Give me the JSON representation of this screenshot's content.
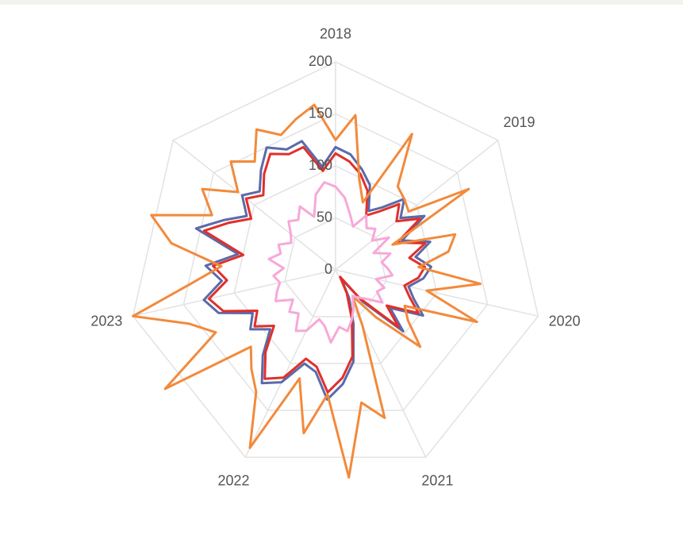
{
  "chart_data": {
    "type": "radar",
    "categories": [
      "2018",
      null,
      null,
      null,
      null,
      null,
      null,
      "2019",
      null,
      null,
      null,
      null,
      null,
      null,
      "2020",
      null,
      null,
      null,
      null,
      null,
      null,
      "2021",
      null,
      null,
      null,
      null,
      null,
      null,
      "2022",
      null,
      null,
      null,
      null,
      null,
      null,
      "2023",
      null,
      null,
      null,
      null,
      null,
      null,
      null,
      null,
      null,
      null,
      null,
      null,
      null
    ],
    "ylim": [
      0,
      200
    ],
    "yticks": [
      0,
      50,
      100,
      150,
      200
    ],
    "grid": true,
    "series": [
      {
        "color": "#5b6aa8",
        "values": [
          118,
          112,
          100,
          88,
          65,
          75,
          95,
          80,
          100,
          70,
          95,
          78,
          92,
          85,
          72,
          80,
          95,
          64,
          88,
          40,
          10,
          30,
          55,
          90,
          110,
          125,
          100,
          95,
          120,
          130,
          108,
          85,
          100,
          90,
          120,
          130,
          110,
          125,
          95,
          140,
          118,
          100,
          115,
          105,
          120,
          135,
          125,
          128,
          100
        ]
      },
      {
        "color": "#e0302b",
        "values": [
          112,
          105,
          95,
          82,
          60,
          70,
          88,
          75,
          95,
          65,
          90,
          72,
          86,
          80,
          68,
          76,
          90,
          60,
          82,
          36,
          8,
          25,
          50,
          85,
          104,
          118,
          95,
          90,
          115,
          125,
          104,
          80,
          95,
          85,
          115,
          125,
          105,
          118,
          90,
          132,
          112,
          95,
          110,
          100,
          115,
          128,
          120,
          122,
          96
        ]
      },
      {
        "color": "#f28a3c",
        "values": [
          125,
          150,
          90,
          70,
          150,
          100,
          95,
          90,
          150,
          60,
          120,
          110,
          80,
          140,
          90,
          145,
          75,
          85,
          110,
          60,
          30,
          60,
          150,
          130,
          200,
          120,
          160,
          110,
          190,
          140,
          125,
          110,
          200,
          130,
          150,
          200,
          140,
          110,
          160,
          185,
          130,
          150,
          120,
          145,
          130,
          155,
          140,
          150,
          160
        ]
      },
      {
        "color": "#f7a8d8",
        "values": [
          80,
          70,
          55,
          45,
          60,
          50,
          55,
          45,
          60,
          40,
          55,
          45,
          50,
          55,
          40,
          50,
          45,
          55,
          42,
          35,
          30,
          40,
          50,
          60,
          55,
          70,
          55,
          50,
          65,
          70,
          55,
          60,
          50,
          65,
          60,
          55,
          60,
          50,
          65,
          55,
          60,
          50,
          55,
          65,
          60,
          70,
          55,
          75,
          85
        ]
      }
    ]
  }
}
